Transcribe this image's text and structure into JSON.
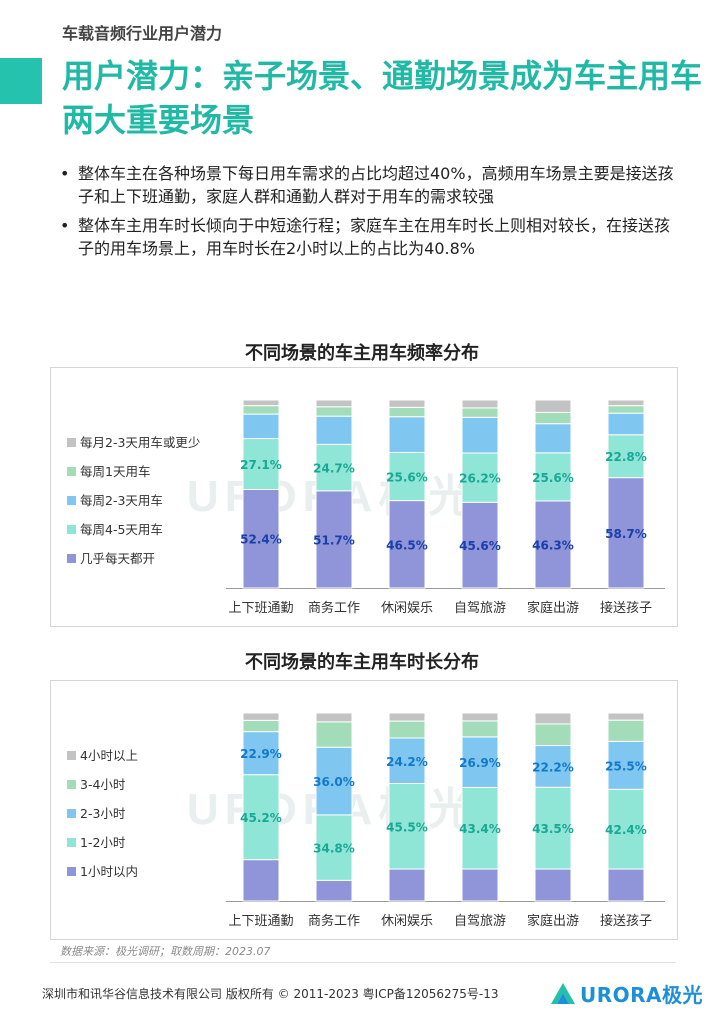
{
  "header": {
    "eyebrow": "车载音频行业用户潜力",
    "title": "用户潜力：亲子场景、通勤场景成为车主用车两大重要场景"
  },
  "bullets": [
    "整体车主在各种场景下每日用车需求的占比均超过40%，高频用车场景主要是接送孩子和上下班通勤，家庭人群和通勤人群对于用车的需求较强",
    "整体车主用车时长倾向于中短途行程；家庭车主在用车时长上则相对较长，在接送孩子的用车场景上，用车时长在2小时以上的占比为40.8%"
  ],
  "chart_data": [
    {
      "type": "bar",
      "stacked": true,
      "normalized": true,
      "title": "不同场景的车主用车频率分布",
      "categories": [
        "上下班通勤",
        "商务工作",
        "休闲娱乐",
        "自驾旅游",
        "家庭出游",
        "接送孩子"
      ],
      "ylim": [
        0,
        100
      ],
      "legend_position": "left",
      "series": [
        {
          "name": "几乎每天都开",
          "values": [
            52.4,
            51.7,
            46.5,
            45.6,
            46.3,
            58.7
          ],
          "color": "#8f95d8",
          "label_color": "#1a3fa8",
          "show_labels": true
        },
        {
          "name": "每周4-5天用车",
          "values": [
            27.1,
            24.7,
            25.6,
            26.2,
            25.6,
            22.8
          ],
          "color": "#8fe6d6",
          "label_color": "#1aa795",
          "show_labels": true
        },
        {
          "name": "每周2-3天用车",
          "values": [
            13.0,
            15.0,
            19.0,
            19.0,
            15.5,
            11.5
          ],
          "color": "#7fc7f1",
          "label_color": "#1478c8",
          "show_labels": false
        },
        {
          "name": "每周1天用车",
          "values": [
            4.5,
            5.0,
            5.0,
            5.0,
            6.0,
            4.0
          ],
          "color": "#a3dcb9",
          "label_color": "#2f8f5a",
          "show_labels": false
        },
        {
          "name": "每月2-3天用车或更少",
          "values": [
            3.0,
            3.6,
            3.9,
            4.2,
            6.6,
            3.0
          ],
          "color": "#c3c3c3",
          "label_color": "#555555",
          "show_labels": false
        }
      ]
    },
    {
      "type": "bar",
      "stacked": true,
      "normalized": true,
      "title": "不同场景的车主用车时长分布",
      "categories": [
        "上下班通勤",
        "商务工作",
        "休闲娱乐",
        "自驾旅游",
        "家庭出游",
        "接送孩子"
      ],
      "ylim": [
        0,
        100
      ],
      "legend_position": "left",
      "series": [
        {
          "name": "1小时以内",
          "values": [
            22.0,
            11.0,
            17.0,
            17.0,
            17.0,
            17.0
          ],
          "color": "#8f95d8",
          "label_color": "#1a3fa8",
          "show_labels": false
        },
        {
          "name": "1-2小时",
          "values": [
            45.2,
            34.8,
            45.5,
            43.4,
            43.5,
            42.4
          ],
          "color": "#8fe6d6",
          "label_color": "#1aa795",
          "show_labels": true
        },
        {
          "name": "2-3小时",
          "values": [
            22.9,
            36.0,
            24.2,
            26.9,
            22.2,
            25.5
          ],
          "color": "#7fc7f1",
          "label_color": "#1478c8",
          "show_labels": true
        },
        {
          "name": "3-4小时",
          "values": [
            6.0,
            13.5,
            9.0,
            8.5,
            11.5,
            11.3
          ],
          "color": "#a3dcb9",
          "label_color": "#2f8f5a",
          "show_labels": false
        },
        {
          "name": "4小时以上",
          "values": [
            3.9,
            4.7,
            4.3,
            4.2,
            5.8,
            3.8
          ],
          "color": "#c3c3c3",
          "label_color": "#555555",
          "show_labels": false
        }
      ]
    }
  ],
  "watermark": "URORA极光",
  "source": "数据来源：极光调研；取数周期：2023.07",
  "footer": {
    "copyright": "深圳市和讯华谷信息技术有限公司 版权所有 © 2011-2023 粤ICP备12056275号-13",
    "logo_text": "URORA极光"
  },
  "colors": {
    "brand_teal": "#1fb9a6",
    "brand_blue": "#1d8fd9"
  }
}
